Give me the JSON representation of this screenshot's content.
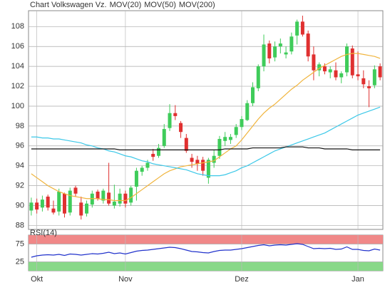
{
  "chart_data": [
    {
      "type": "candlestick",
      "categories": [
        null,
        "Okt",
        null,
        null,
        null,
        null,
        null,
        null,
        null,
        null,
        null,
        null,
        null,
        null,
        null,
        null,
        null,
        "Nov",
        null,
        null,
        null,
        null,
        null,
        null,
        null,
        null,
        null,
        null,
        null,
        null,
        null,
        null,
        null,
        null,
        null,
        null,
        null,
        null,
        "Dez",
        null,
        null,
        null,
        null,
        null,
        null,
        null,
        null,
        null,
        null,
        null,
        null,
        null,
        null,
        null,
        null,
        null,
        null,
        null,
        null,
        "Jan",
        null,
        null,
        null,
        null
      ],
      "series": [
        {
          "name": "Chart Volkswagen Vz.",
          "color": "#e04a3a",
          "up_color": "#3fcc5a",
          "down_color": "#e03030",
          "open": [
            89.5,
            90.3,
            89.8,
            90.9,
            89.7,
            89.4,
            91.2,
            89.3,
            91.8,
            90.3,
            89.2,
            90.1,
            91.4,
            90.5,
            91.3,
            90.0,
            90.2,
            91.2,
            90.3,
            91.9,
            93.4,
            93.8,
            95.2,
            95.0,
            96.0,
            97.8,
            99.3,
            98.3,
            96.8,
            94.8,
            94.6,
            94.6,
            92.8,
            94.3,
            95.0,
            96.5,
            96.6,
            97.1,
            97.9,
            98.6,
            100.3,
            101.8,
            104.0,
            106.3,
            104.9,
            106.0,
            105.2,
            105.5,
            107.1,
            108.5,
            107.3,
            105.2,
            103.6,
            104.0,
            103.4,
            103.6,
            102.9,
            103.4,
            105.8,
            103.2,
            102.8,
            102.0,
            102.1,
            104.0
          ],
          "high": [
            90.8,
            90.7,
            91.0,
            91.1,
            90.5,
            91.7,
            91.3,
            91.8,
            92.0,
            90.9,
            90.5,
            91.5,
            91.6,
            91.7,
            94.3,
            92.1,
            91.7,
            91.5,
            92.0,
            93.8,
            94.0,
            94.6,
            95.7,
            96.2,
            98.2,
            100.2,
            100.1,
            98.5,
            97.2,
            95.2,
            95.0,
            94.9,
            94.8,
            95.6,
            97.0,
            97.4,
            97.2,
            98.2,
            99.0,
            100.6,
            102.4,
            104.2,
            107.2,
            106.6,
            106.5,
            106.8,
            106.0,
            107.4,
            108.7,
            109.1,
            107.6,
            106.0,
            104.4,
            104.3,
            104.0,
            104.4,
            103.5,
            106.3,
            106.1,
            105.5,
            103.6,
            102.6,
            104.1,
            104.3
          ],
          "low": [
            89.0,
            89.2,
            89.4,
            89.5,
            89.1,
            89.0,
            88.8,
            89.0,
            90.9,
            88.6,
            88.9,
            89.8,
            90.5,
            90.2,
            90.0,
            89.7,
            89.9,
            89.8,
            90.0,
            90.5,
            93.0,
            93.5,
            94.5,
            94.8,
            95.8,
            97.5,
            98.6,
            96.8,
            95.3,
            93.8,
            93.5,
            93.0,
            92.2,
            93.8,
            94.7,
            96.0,
            96.2,
            96.8,
            97.6,
            98.5,
            100.0,
            101.5,
            103.5,
            104.3,
            104.5,
            105.3,
            104.8,
            105.2,
            106.2,
            107.0,
            104.5,
            102.6,
            103.0,
            103.2,
            102.8,
            102.6,
            102.3,
            103.0,
            102.8,
            102.6,
            101.8,
            99.9,
            101.8,
            102.6
          ],
          "close": [
            90.3,
            89.6,
            90.6,
            89.8,
            89.3,
            91.4,
            89.2,
            91.5,
            91.2,
            89.0,
            90.2,
            91.2,
            90.7,
            91.5,
            90.2,
            90.4,
            91.2,
            90.2,
            91.8,
            93.5,
            93.8,
            94.3,
            94.9,
            95.8,
            97.7,
            99.3,
            99.0,
            97.4,
            95.5,
            94.4,
            94.2,
            93.5,
            94.6,
            95.0,
            96.7,
            96.9,
            96.9,
            97.9,
            98.7,
            100.3,
            101.9,
            104.0,
            106.2,
            104.8,
            106.0,
            106.3,
            105.4,
            107.0,
            108.5,
            107.2,
            105.0,
            103.6,
            104.2,
            103.5,
            103.7,
            102.9,
            103.3,
            106.0,
            103.1,
            103.0,
            102.2,
            101.8,
            103.7,
            102.9
          ]
        },
        {
          "name": "MOV(20)",
          "color": "#f0b43c",
          "values": [
            93.2,
            92.8,
            92.4,
            92.0,
            91.7,
            91.4,
            91.2,
            91.0,
            90.9,
            90.8,
            90.7,
            90.7,
            90.7,
            90.6,
            90.6,
            90.5,
            90.5,
            90.5,
            90.8,
            91.2,
            91.6,
            92.0,
            92.4,
            92.8,
            93.2,
            93.5,
            93.7,
            93.9,
            94.0,
            94.1,
            94.2,
            94.3,
            94.4,
            94.5,
            94.9,
            95.3,
            95.7,
            96.0,
            96.6,
            97.3,
            98.0,
            98.7,
            99.3,
            99.8,
            100.2,
            100.7,
            101.2,
            101.7,
            102.1,
            102.6,
            103.0,
            103.4,
            103.8,
            104.1,
            104.4,
            104.7,
            105.0,
            105.2,
            105.3,
            105.3,
            105.2,
            105.1,
            105.0,
            104.8
          ]
        },
        {
          "name": "MOV(50)",
          "color": "#3cc8e8",
          "values": [
            96.9,
            96.9,
            96.8,
            96.8,
            96.7,
            96.7,
            96.6,
            96.5,
            96.4,
            96.3,
            96.1,
            96.0,
            95.8,
            95.7,
            95.5,
            95.4,
            95.2,
            95.0,
            94.9,
            94.7,
            94.5,
            94.4,
            94.2,
            94.1,
            94.0,
            93.9,
            93.8,
            93.7,
            93.6,
            93.4,
            93.2,
            93.1,
            93.0,
            93.0,
            93.0,
            93.1,
            93.3,
            93.5,
            93.8,
            94.0,
            94.3,
            94.6,
            94.9,
            95.2,
            95.5,
            95.7,
            95.9,
            96.1,
            96.3,
            96.5,
            96.7,
            96.9,
            97.1,
            97.3,
            97.6,
            97.9,
            98.2,
            98.5,
            98.8,
            99.1,
            99.3,
            99.5,
            99.7,
            99.9
          ]
        },
        {
          "name": "MOV(200)",
          "color": "#111111",
          "values": [
            95.7,
            95.7,
            95.7,
            95.7,
            95.7,
            95.7,
            95.7,
            95.7,
            95.7,
            95.7,
            95.7,
            95.7,
            95.7,
            95.7,
            95.7,
            95.7,
            95.6,
            95.6,
            95.6,
            95.6,
            95.6,
            95.6,
            95.6,
            95.6,
            95.6,
            95.6,
            95.6,
            95.6,
            95.6,
            95.6,
            95.6,
            95.6,
            95.6,
            95.6,
            95.6,
            95.7,
            95.7,
            95.7,
            95.7,
            95.7,
            95.8,
            95.8,
            95.8,
            95.8,
            95.8,
            95.8,
            95.9,
            95.9,
            95.9,
            95.9,
            95.8,
            95.8,
            95.8,
            95.7,
            95.7,
            95.7,
            95.7,
            95.7,
            95.6,
            95.6,
            95.6,
            95.6,
            95.6,
            95.6
          ]
        }
      ],
      "ylim": [
        87.6,
        109.6
      ],
      "yticks": [
        88,
        90,
        92,
        94,
        96,
        98,
        100,
        102,
        104,
        106,
        108
      ],
      "grid": true
    },
    {
      "type": "line",
      "title": "RSI(14)",
      "series": [
        {
          "color": "#2233cc",
          "values": [
            38,
            42,
            44,
            45,
            44,
            46,
            43,
            47,
            46,
            44,
            46,
            48,
            47,
            49,
            52,
            48,
            50,
            47,
            51,
            55,
            57,
            58,
            60,
            62,
            64,
            66,
            65,
            62,
            58,
            54,
            53,
            51,
            50,
            54,
            57,
            58,
            58,
            60,
            62,
            65,
            68,
            71,
            73,
            70,
            72,
            73,
            72,
            74,
            76,
            74,
            68,
            62,
            63,
            62,
            63,
            60,
            61,
            67,
            60,
            60,
            57,
            56,
            61,
            58
          ]
        }
      ],
      "bands": [
        {
          "from": 75,
          "to": 100,
          "color": "#f08888"
        },
        {
          "from": 0,
          "to": 25,
          "color": "#88d888"
        }
      ],
      "ylim": [
        0,
        100
      ],
      "yticks": [
        25,
        75
      ],
      "grid": true
    }
  ]
}
